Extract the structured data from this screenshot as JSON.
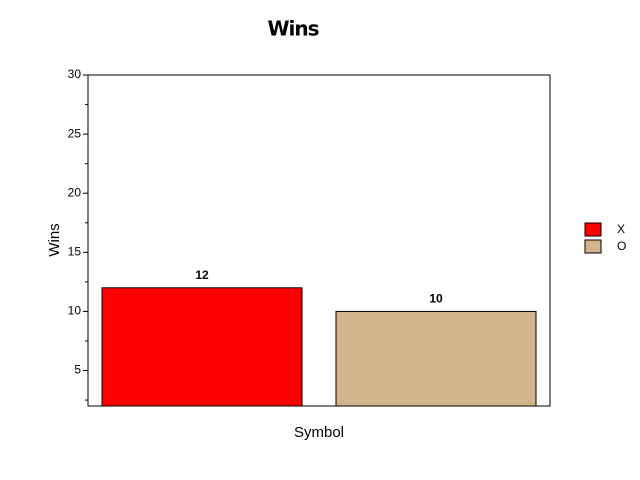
{
  "chart_data": {
    "type": "bar",
    "title": "Wins",
    "x_label": "Symbol",
    "y_label": "Wins",
    "categories": [
      null
    ],
    "series": [
      {
        "name": "X",
        "color": "#ff0000",
        "values": [
          12
        ]
      },
      {
        "name": "O",
        "color": "#d2b48c",
        "values": [
          10
        ]
      }
    ],
    "ylim": [
      2,
      30
    ],
    "yticks": [
      5,
      10,
      15,
      20,
      25,
      30
    ],
    "minor_yticks": [
      2.5,
      7.5,
      12.5,
      17.5,
      22.5,
      27.5
    ],
    "grid": false,
    "legend": "right"
  }
}
